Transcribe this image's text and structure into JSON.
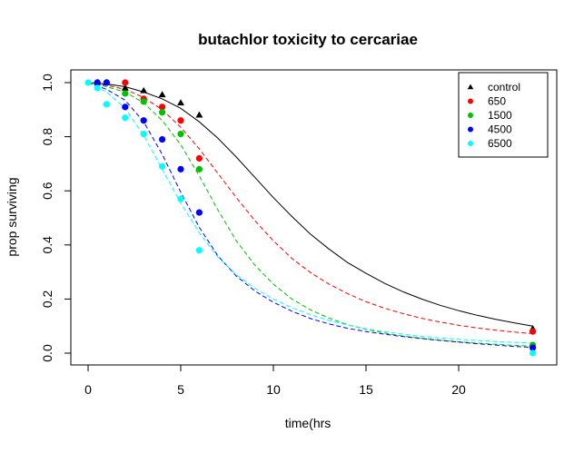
{
  "chart_data": {
    "type": "scatter",
    "title": "butachlor toxicity to cercariae",
    "xlabel": "time(hrs",
    "ylabel": "prop surviving",
    "xlim": [
      0,
      24
    ],
    "ylim": [
      0.0,
      1.0
    ],
    "xticks": [
      0,
      5,
      10,
      15,
      20
    ],
    "yticks": [
      0.0,
      0.2,
      0.4,
      0.6,
      0.8,
      1.0
    ],
    "grid": false,
    "legend_position": "top-right",
    "series": [
      {
        "name": "control",
        "color": "#000000",
        "marker": "triangle",
        "line_style": "solid",
        "points": [
          [
            0.5,
            1.0
          ],
          [
            1,
            1.0
          ],
          [
            2,
            0.98
          ],
          [
            3,
            0.97
          ],
          [
            4,
            0.955
          ],
          [
            5,
            0.925
          ],
          [
            6,
            0.88
          ],
          [
            24,
            0.09
          ]
        ],
        "curve": [
          [
            0,
            1.0
          ],
          [
            1,
            0.995
          ],
          [
            2,
            0.985
          ],
          [
            3,
            0.965
          ],
          [
            4,
            0.94
          ],
          [
            5,
            0.905
          ],
          [
            6,
            0.855
          ],
          [
            7,
            0.795
          ],
          [
            8,
            0.725
          ],
          [
            9,
            0.65
          ],
          [
            10,
            0.575
          ],
          [
            11,
            0.505
          ],
          [
            12,
            0.44
          ],
          [
            13,
            0.385
          ],
          [
            14,
            0.335
          ],
          [
            15,
            0.295
          ],
          [
            16,
            0.258
          ],
          [
            17,
            0.227
          ],
          [
            18,
            0.2
          ],
          [
            19,
            0.177
          ],
          [
            20,
            0.157
          ],
          [
            21,
            0.14
          ],
          [
            22,
            0.125
          ],
          [
            23,
            0.112
          ],
          [
            24,
            0.1
          ]
        ]
      },
      {
        "name": "650",
        "color": "#ff0000",
        "marker": "circle",
        "line_style": "dashed",
        "points": [
          [
            0.5,
            1.0
          ],
          [
            1,
            1.0
          ],
          [
            2,
            1.0
          ],
          [
            3,
            0.94
          ],
          [
            4,
            0.91
          ],
          [
            5,
            0.86
          ],
          [
            6,
            0.72
          ],
          [
            24,
            0.08
          ]
        ],
        "curve": [
          [
            0,
            1.0
          ],
          [
            1,
            0.99
          ],
          [
            2,
            0.975
          ],
          [
            3,
            0.945
          ],
          [
            4,
            0.9
          ],
          [
            5,
            0.835
          ],
          [
            6,
            0.755
          ],
          [
            7,
            0.665
          ],
          [
            8,
            0.575
          ],
          [
            9,
            0.49
          ],
          [
            10,
            0.415
          ],
          [
            11,
            0.35
          ],
          [
            12,
            0.298
          ],
          [
            13,
            0.255
          ],
          [
            14,
            0.22
          ],
          [
            15,
            0.19
          ],
          [
            16,
            0.166
          ],
          [
            17,
            0.146
          ],
          [
            18,
            0.129
          ],
          [
            19,
            0.115
          ],
          [
            20,
            0.103
          ],
          [
            21,
            0.093
          ],
          [
            22,
            0.085
          ],
          [
            23,
            0.078
          ],
          [
            24,
            0.072
          ]
        ]
      },
      {
        "name": "1500",
        "color": "#00c000",
        "marker": "circle",
        "line_style": "dashed",
        "points": [
          [
            0.5,
            1.0
          ],
          [
            1,
            1.0
          ],
          [
            2,
            0.96
          ],
          [
            3,
            0.93
          ],
          [
            4,
            0.89
          ],
          [
            5,
            0.81
          ],
          [
            6,
            0.68
          ],
          [
            24,
            0.03
          ]
        ],
        "curve": [
          [
            0,
            1.0
          ],
          [
            1,
            0.985
          ],
          [
            2,
            0.965
          ],
          [
            3,
            0.925
          ],
          [
            4,
            0.86
          ],
          [
            5,
            0.77
          ],
          [
            6,
            0.655
          ],
          [
            7,
            0.53
          ],
          [
            8,
            0.415
          ],
          [
            9,
            0.325
          ],
          [
            10,
            0.255
          ],
          [
            11,
            0.2
          ],
          [
            12,
            0.16
          ],
          [
            13,
            0.13
          ],
          [
            14,
            0.105
          ],
          [
            15,
            0.088
          ],
          [
            16,
            0.074
          ],
          [
            17,
            0.063
          ],
          [
            18,
            0.055
          ],
          [
            19,
            0.048
          ],
          [
            20,
            0.042
          ],
          [
            21,
            0.037
          ],
          [
            22,
            0.033
          ],
          [
            23,
            0.029
          ],
          [
            24,
            0.026
          ]
        ]
      },
      {
        "name": "4500",
        "color": "#0000ff",
        "marker": "circle",
        "line_style": "dashed",
        "points": [
          [
            0.5,
            1.0
          ],
          [
            1,
            1.0
          ],
          [
            2,
            0.91
          ],
          [
            3,
            0.86
          ],
          [
            4,
            0.79
          ],
          [
            5,
            0.68
          ],
          [
            6,
            0.52
          ],
          [
            24,
            0.02
          ]
        ],
        "curve": [
          [
            0,
            1.0
          ],
          [
            1,
            0.975
          ],
          [
            2,
            0.935
          ],
          [
            3,
            0.855
          ],
          [
            4,
            0.735
          ],
          [
            5,
            0.595
          ],
          [
            6,
            0.465
          ],
          [
            7,
            0.36
          ],
          [
            8,
            0.285
          ],
          [
            9,
            0.23
          ],
          [
            10,
            0.188
          ],
          [
            11,
            0.155
          ],
          [
            12,
            0.128
          ],
          [
            13,
            0.108
          ],
          [
            14,
            0.092
          ],
          [
            15,
            0.08
          ],
          [
            16,
            0.07
          ],
          [
            17,
            0.061
          ],
          [
            18,
            0.054
          ],
          [
            19,
            0.047
          ],
          [
            20,
            0.041
          ],
          [
            21,
            0.035
          ],
          [
            22,
            0.03
          ],
          [
            23,
            0.025
          ],
          [
            24,
            0.021
          ]
        ]
      },
      {
        "name": "6500",
        "color": "#00ffff",
        "marker": "circle",
        "line_style": "dashed",
        "points": [
          [
            0,
            1.0
          ],
          [
            0.5,
            0.98
          ],
          [
            1,
            0.92
          ],
          [
            2,
            0.87
          ],
          [
            3,
            0.81
          ],
          [
            4,
            0.69
          ],
          [
            5,
            0.57
          ],
          [
            6,
            0.38
          ],
          [
            24,
            0.0
          ]
        ],
        "curve": [
          [
            0,
            1.0
          ],
          [
            1,
            0.965
          ],
          [
            2,
            0.905
          ],
          [
            3,
            0.805
          ],
          [
            4,
            0.68
          ],
          [
            5,
            0.555
          ],
          [
            6,
            0.445
          ],
          [
            7,
            0.355
          ],
          [
            8,
            0.29
          ],
          [
            9,
            0.24
          ],
          [
            10,
            0.2
          ],
          [
            11,
            0.168
          ],
          [
            12,
            0.142
          ],
          [
            13,
            0.121
          ],
          [
            14,
            0.104
          ],
          [
            15,
            0.09
          ],
          [
            16,
            0.079
          ],
          [
            17,
            0.07
          ],
          [
            18,
            0.062
          ],
          [
            19,
            0.056
          ],
          [
            20,
            0.051
          ],
          [
            21,
            0.047
          ],
          [
            22,
            0.043
          ],
          [
            23,
            0.04
          ],
          [
            24,
            0.037
          ]
        ]
      }
    ]
  }
}
